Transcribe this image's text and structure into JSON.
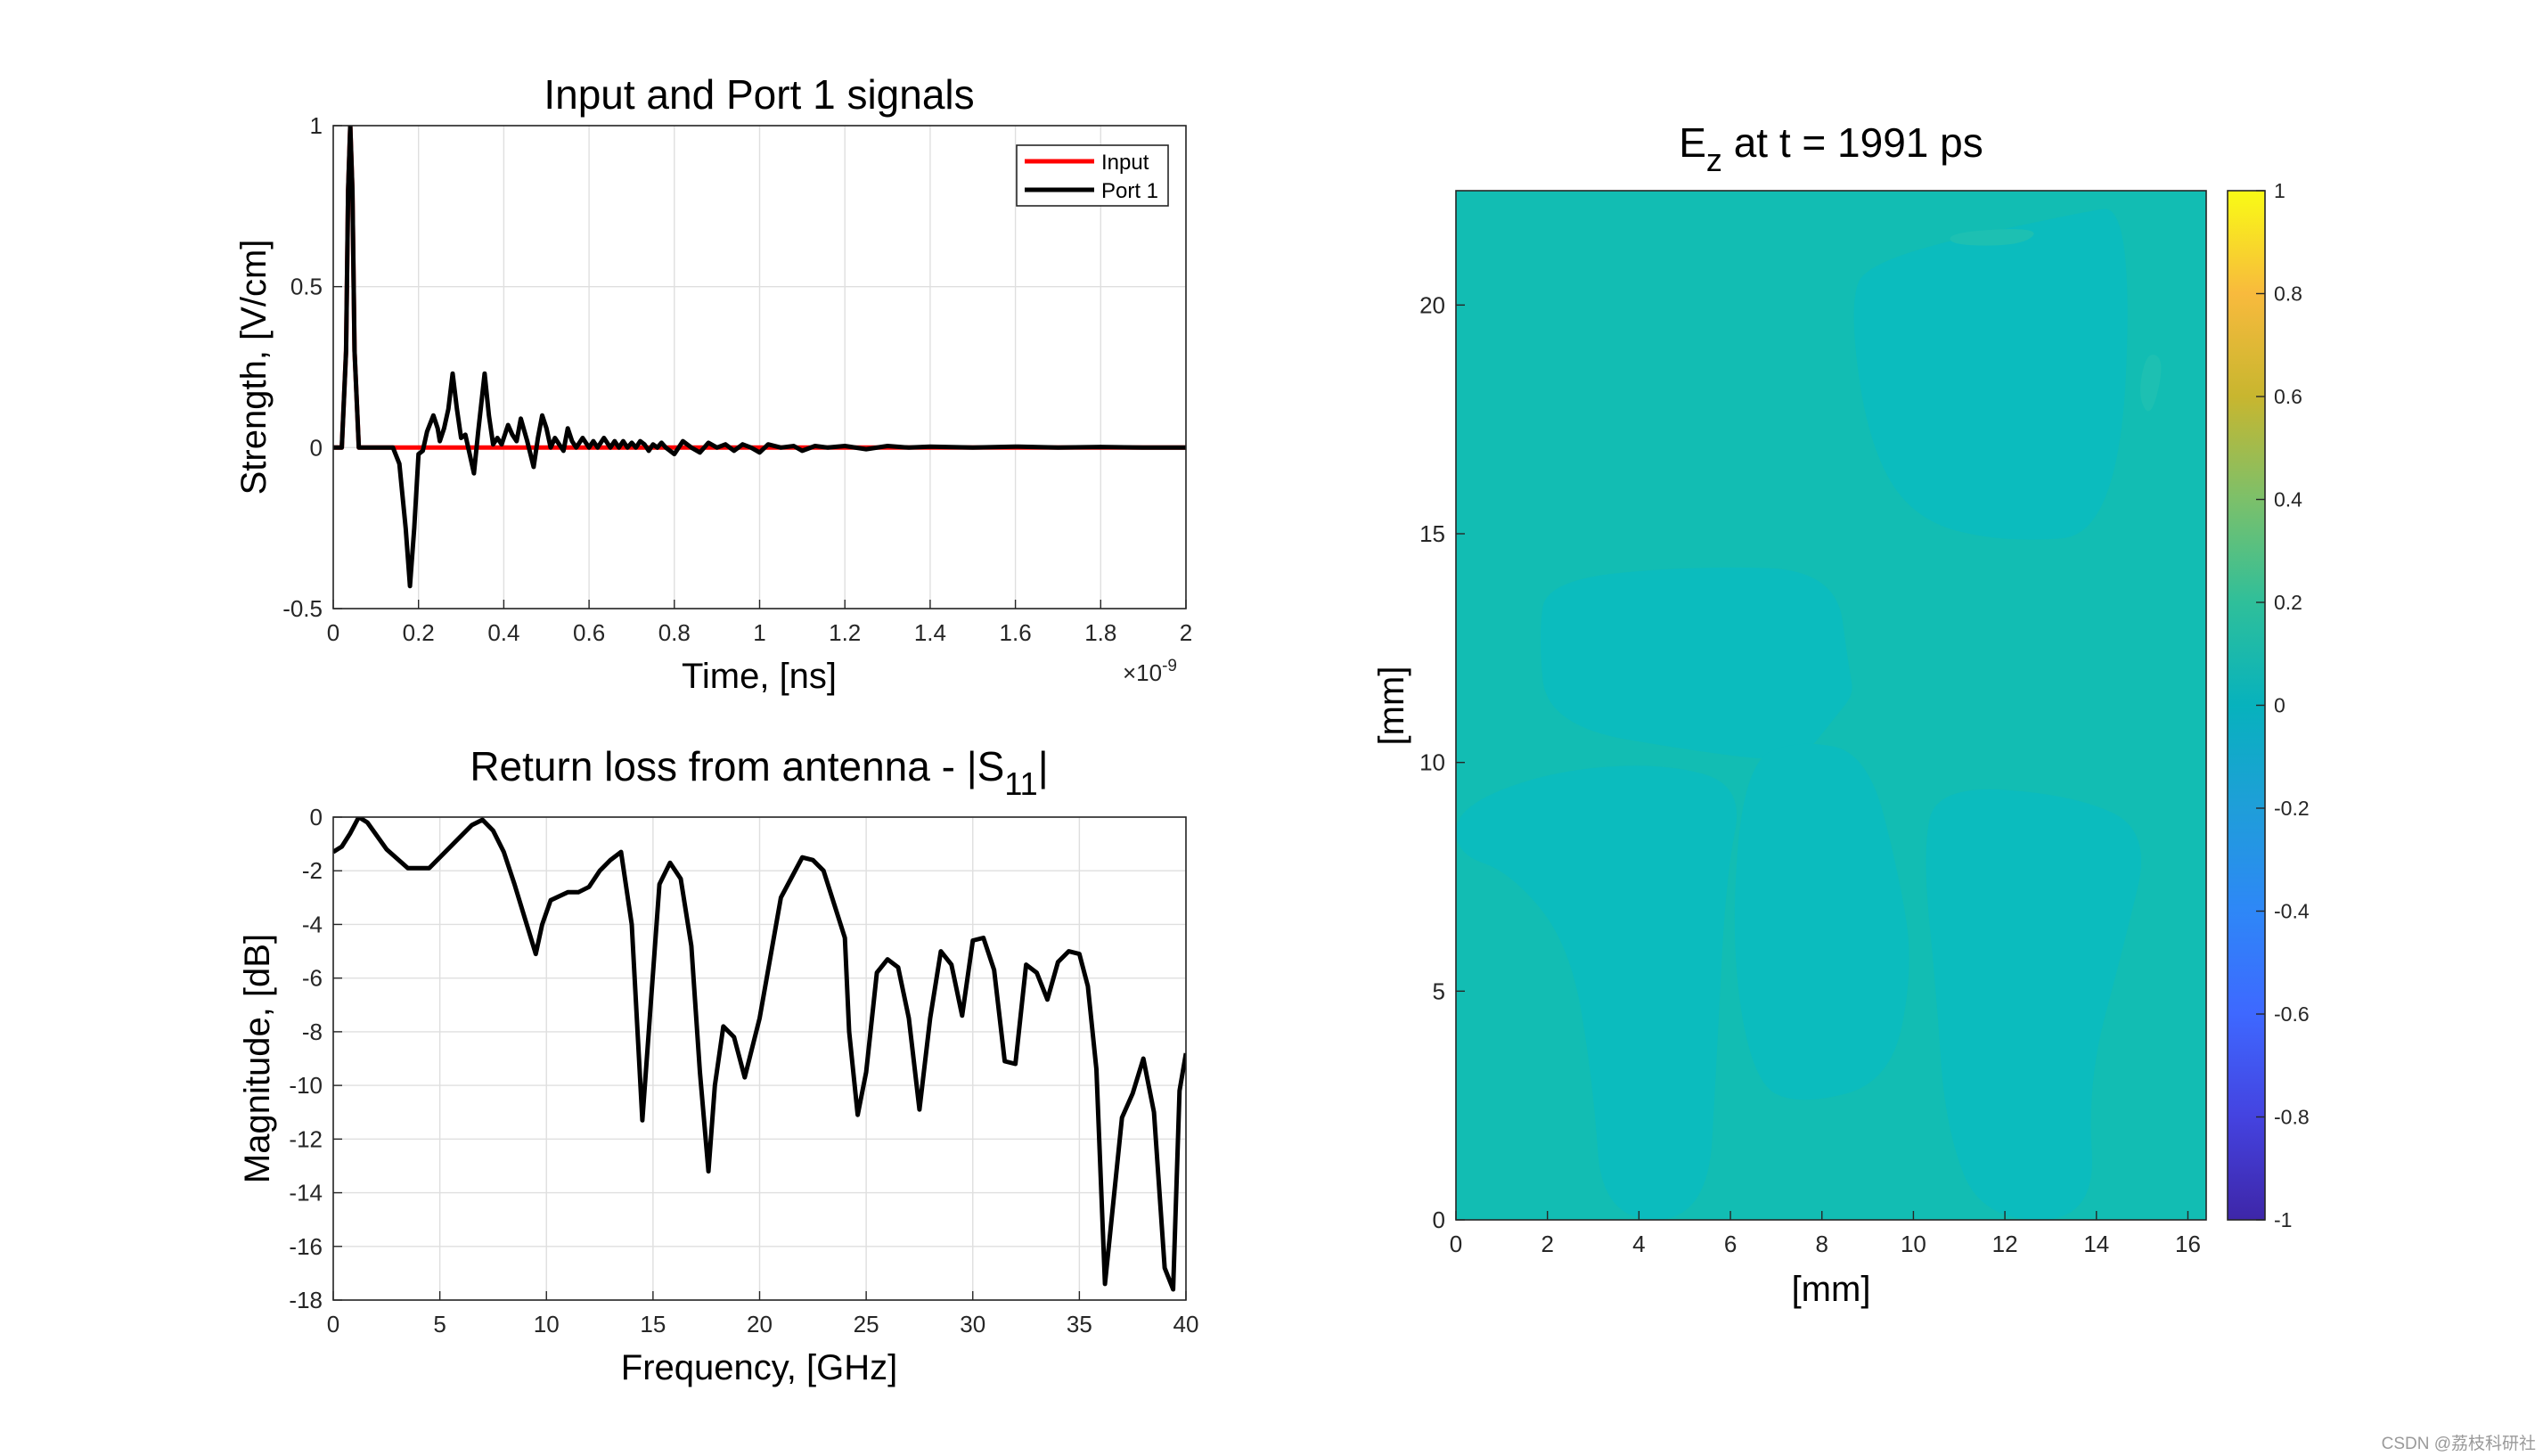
{
  "watermark": "CSDN @荔枝科研社",
  "chart_data": [
    {
      "type": "line",
      "title": "Input and Port 1 signals",
      "xlabel": "Time, [ns]",
      "ylabel": "Strength, [V/cm]",
      "x_exponent": "×10",
      "x_exponent_power": "-9",
      "xlim": [
        0,
        2
      ],
      "ylim": [
        -0.5,
        1
      ],
      "xticks": [
        0,
        0.2,
        0.4,
        0.6,
        0.8,
        1,
        1.2,
        1.4,
        1.6,
        1.8,
        2
      ],
      "xtick_labels": [
        "0",
        "0.2",
        "0.4",
        "0.6",
        "0.8",
        "1",
        "1.2",
        "1.4",
        "1.6",
        "1.8",
        "2"
      ],
      "yticks": [
        -0.5,
        0,
        0.5,
        1
      ],
      "ytick_labels": [
        "-0.5",
        "0",
        "0.5",
        "1"
      ],
      "grid": true,
      "legend": "top-right",
      "series": [
        {
          "name": "Input",
          "color": "#ff0000",
          "x": [
            0,
            0.02,
            0.03,
            0.035,
            0.04,
            0.045,
            0.05,
            0.06,
            0.08,
            2
          ],
          "y": [
            0,
            0,
            0.3,
            0.8,
            1,
            0.8,
            0.3,
            0,
            0,
            0
          ]
        },
        {
          "name": "Port 1",
          "color": "#000000",
          "x": [
            0,
            0.02,
            0.03,
            0.035,
            0.04,
            0.045,
            0.05,
            0.06,
            0.08,
            0.14,
            0.155,
            0.17,
            0.18,
            0.19,
            0.2,
            0.21,
            0.22,
            0.235,
            0.245,
            0.25,
            0.26,
            0.27,
            0.28,
            0.29,
            0.3,
            0.31,
            0.32,
            0.33,
            0.34,
            0.355,
            0.365,
            0.375,
            0.385,
            0.395,
            0.41,
            0.42,
            0.43,
            0.44,
            0.455,
            0.47,
            0.48,
            0.49,
            0.5,
            0.51,
            0.52,
            0.53,
            0.54,
            0.55,
            0.56,
            0.57,
            0.585,
            0.6,
            0.61,
            0.62,
            0.635,
            0.65,
            0.66,
            0.67,
            0.68,
            0.69,
            0.7,
            0.71,
            0.72,
            0.73,
            0.74,
            0.75,
            0.76,
            0.77,
            0.78,
            0.8,
            0.82,
            0.84,
            0.86,
            0.88,
            0.9,
            0.92,
            0.94,
            0.96,
            0.98,
            1.0,
            1.02,
            1.05,
            1.08,
            1.1,
            1.13,
            1.16,
            1.2,
            1.25,
            1.3,
            1.35,
            1.4,
            1.5,
            1.6,
            1.7,
            1.8,
            1.9,
            2
          ],
          "y": [
            0,
            0,
            0.3,
            0.8,
            1,
            0.8,
            0.3,
            0,
            0,
            0,
            -0.05,
            -0.25,
            -0.43,
            -0.25,
            -0.02,
            -0.01,
            0.05,
            0.1,
            0.06,
            0.02,
            0.06,
            0.12,
            0.23,
            0.12,
            0.03,
            0.04,
            -0.02,
            -0.08,
            0.05,
            0.23,
            0.1,
            0.01,
            0.03,
            0.01,
            0.07,
            0.04,
            0.02,
            0.09,
            0.02,
            -0.06,
            0.03,
            0.1,
            0.06,
            0,
            0.03,
            0.01,
            -0.01,
            0.06,
            0.02,
            0,
            0.03,
            0,
            0.02,
            0,
            0.03,
            0,
            0.02,
            0,
            0.02,
            0,
            0.015,
            0,
            0.02,
            0.01,
            -0.01,
            0.01,
            0,
            0.015,
            0,
            -0.02,
            0.02,
            0,
            -0.015,
            0.015,
            0,
            0.01,
            -0.01,
            0.01,
            0,
            -0.015,
            0.01,
            0,
            0.005,
            -0.01,
            0.005,
            0,
            0.005,
            -0.005,
            0.005,
            0,
            0.003,
            0,
            0.003,
            0,
            0.002,
            0,
            0
          ]
        }
      ]
    },
    {
      "type": "line",
      "title": "Return loss from antenna - |S",
      "title_subscript": "11",
      "title_suffix": "|",
      "xlabel": "Frequency, [GHz]",
      "ylabel": "Magnitude, [dB]",
      "xlim": [
        0,
        40
      ],
      "ylim": [
        -18,
        0
      ],
      "xticks": [
        0,
        5,
        10,
        15,
        20,
        25,
        30,
        35,
        40
      ],
      "xtick_labels": [
        "0",
        "5",
        "10",
        "15",
        "20",
        "25",
        "30",
        "35",
        "40"
      ],
      "yticks": [
        -18,
        -16,
        -14,
        -12,
        -10,
        -8,
        -6,
        -4,
        -2,
        0
      ],
      "ytick_labels": [
        "-18",
        "-16",
        "-14",
        "-12",
        "-10",
        "-8",
        "-6",
        "-4",
        "-2",
        "0"
      ],
      "grid": true,
      "series": [
        {
          "color": "#000000",
          "x": [
            0,
            0.4,
            0.8,
            1.2,
            1.6,
            2.5,
            3.5,
            4.5,
            5.5,
            6.5,
            7.0,
            7.5,
            8.0,
            8.5,
            9.0,
            9.5,
            9.8,
            10.2,
            11,
            11.5,
            12,
            12.5,
            13,
            13.5,
            14,
            14.5,
            14.8,
            15.3,
            15.8,
            16.3,
            16.8,
            17.2,
            17.6,
            17.9,
            18.3,
            18.8,
            19.3,
            20,
            21,
            22,
            22.5,
            23,
            24,
            24.2,
            24.6,
            25.0,
            25.5,
            26,
            26.5,
            27,
            27.5,
            28,
            28.5,
            29,
            29.5,
            30,
            30.5,
            31,
            31.5,
            32,
            32.5,
            33,
            33.5,
            34,
            34.5,
            35,
            35.4,
            35.8,
            36.2,
            37,
            37.5,
            38,
            38.5,
            39,
            39.4,
            39.7,
            40
          ],
          "y": [
            -1.3,
            -1.1,
            -0.6,
            0,
            -0.2,
            -1.2,
            -1.9,
            -1.9,
            -1.1,
            -0.3,
            -0.1,
            -0.5,
            -1.3,
            -2.5,
            -3.8,
            -5.1,
            -4,
            -3.1,
            -2.8,
            -2.8,
            -2.6,
            -2,
            -1.6,
            -1.3,
            -4,
            -11.3,
            -8,
            -2.5,
            -1.7,
            -2.3,
            -4.8,
            -9.5,
            -13.2,
            -10,
            -7.8,
            -8.2,
            -9.7,
            -7.5,
            -3,
            -1.5,
            -1.6,
            -2,
            -4.5,
            -8,
            -11.1,
            -9.5,
            -5.8,
            -5.3,
            -5.6,
            -7.5,
            -10.9,
            -7.5,
            -5,
            -5.5,
            -7.4,
            -4.6,
            -4.5,
            -5.7,
            -9.1,
            -9.2,
            -5.5,
            -5.8,
            -6.8,
            -5.4,
            -5,
            -5.1,
            -6.3,
            -9.4,
            -17.4,
            -11.2,
            -10.3,
            -9,
            -11,
            -16.8,
            -17.6,
            -10.2,
            -8.8
          ]
        }
      ]
    },
    {
      "type": "heatmap",
      "title": "E",
      "title_subscript": "z",
      "title_suffix": " at t = 1991 ps",
      "xlabel": "[mm]",
      "ylabel": "[mm]",
      "xlim": [
        0,
        16.4
      ],
      "ylim": [
        0,
        22.5
      ],
      "xticks": [
        0,
        2,
        4,
        6,
        8,
        10,
        12,
        14,
        16
      ],
      "xtick_labels": [
        "0",
        "2",
        "4",
        "6",
        "8",
        "10",
        "12",
        "14",
        "16"
      ],
      "yticks": [
        0,
        5,
        10,
        15,
        20
      ],
      "ytick_labels": [
        "0",
        "5",
        "10",
        "15",
        "20"
      ],
      "colorbar": {
        "position": "right",
        "colormap": "parula",
        "clim": [
          -1,
          1
        ],
        "ticks": [
          -1,
          -0.8,
          -0.6,
          -0.4,
          -0.2,
          0,
          0.2,
          0.4,
          0.6,
          0.8,
          1
        ],
        "tick_labels": [
          "-1",
          "-0.8",
          "-0.6",
          "-0.4",
          "-0.2",
          "0",
          "0.2",
          "0.4",
          "0.6",
          "0.8",
          "1"
        ],
        "stops": [
          "#3e26a8",
          "#4443e0",
          "#3e68ff",
          "#2e87f7",
          "#1f9ed9",
          "#07b2bd",
          "#2fbf9a",
          "#7cc06a",
          "#c8b62f",
          "#f8ba3d",
          "#f9fb15"
        ]
      },
      "field_colors": {
        "base": "#12bdb3",
        "light": "#1dc0b2",
        "dark": "#0bbcbe"
      },
      "regions": [
        {
          "shade": "dark",
          "points": [
            [
              9.0,
              21.0
            ],
            [
              13.5,
              22.0
            ],
            [
              14.8,
              22.2
            ],
            [
              14.5,
              15.0
            ],
            [
              12.0,
              14.8
            ],
            [
              10.0,
              15.3
            ],
            [
              9.0,
              17.0
            ],
            [
              8.6,
              20.0
            ]
          ]
        },
        {
          "shade": "light",
          "points": [
            [
              10.8,
              21.6
            ],
            [
              12.8,
              21.7
            ],
            [
              12.4,
              21.3
            ],
            [
              10.8,
              21.3
            ]
          ]
        },
        {
          "shade": "light",
          "points": [
            [
              15.2,
              17.5
            ],
            [
              15.5,
              18.8
            ],
            [
              15.1,
              19.0
            ],
            [
              14.9,
              18.0
            ]
          ]
        },
        {
          "shade": "dark",
          "points": [
            [
              2.0,
              14.0
            ],
            [
              5.3,
              14.3
            ],
            [
              8.3,
              14.2
            ],
            [
              8.6,
              12.0
            ],
            [
              8.7,
              11.5
            ],
            [
              8.3,
              11.0
            ],
            [
              7.5,
              10.0
            ],
            [
              5.5,
              10.2
            ],
            [
              2.0,
              10.8
            ],
            [
              1.8,
              12.8
            ]
          ]
        },
        {
          "shade": "dark",
          "points": [
            [
              6.3,
              10.0
            ],
            [
              6.0,
              6.0
            ],
            [
              6.5,
              3.0
            ],
            [
              7.5,
              2.5
            ],
            [
              9.5,
              3.0
            ],
            [
              10.0,
              5.5
            ],
            [
              9.7,
              7.5
            ],
            [
              9.0,
              10.2
            ],
            [
              7.5,
              10.5
            ]
          ]
        },
        {
          "shade": "dark",
          "points": [
            [
              0,
              8.0
            ],
            [
              1.2,
              7.6
            ],
            [
              2.5,
              6.0
            ],
            [
              3.0,
              3.0
            ],
            [
              3.2,
              0
            ],
            [
              5.5,
              0
            ],
            [
              5.7,
              3.5
            ],
            [
              5.9,
              7.5
            ],
            [
              6.3,
              9.5
            ],
            [
              4.5,
              10.0
            ],
            [
              2.0,
              9.8
            ],
            [
              0,
              9.0
            ]
          ]
        },
        {
          "shade": "dark",
          "points": [
            [
              10.5,
              9.5
            ],
            [
              13.5,
              9.3
            ],
            [
              15.2,
              8.5
            ],
            [
              14.6,
              6.0
            ],
            [
              13.8,
              3.0
            ],
            [
              14.0,
              0
            ],
            [
              11.5,
              0
            ],
            [
              10.7,
              2.0
            ],
            [
              10.5,
              5.0
            ],
            [
              10.2,
              8.0
            ]
          ]
        }
      ]
    }
  ]
}
